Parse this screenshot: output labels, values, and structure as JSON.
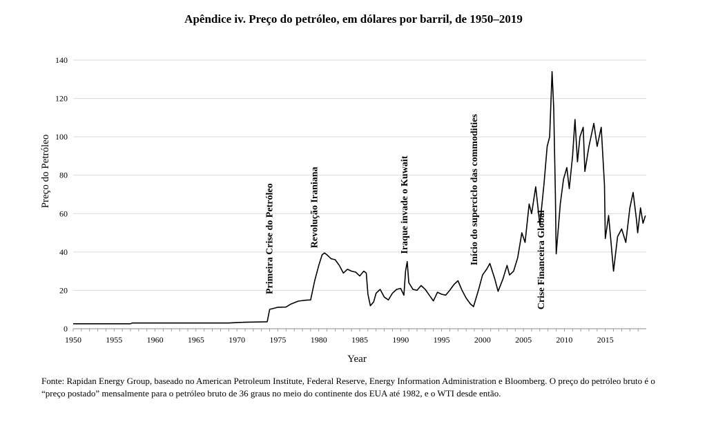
{
  "chart_data": {
    "type": "line",
    "title": "Apêndice iv. Preço do petróleo, em dólares por barril, de 1950–2019",
    "xlabel": "Year",
    "ylabel": "Preço do Petróleo",
    "xlim": [
      1950,
      2020
    ],
    "ylim": [
      0,
      140
    ],
    "x_ticks": [
      "1950",
      "1955",
      "1960",
      "1965",
      "1970",
      "1975",
      "1980",
      "1985",
      "1990",
      "1995",
      "2000",
      "2005",
      "2010",
      "2015"
    ],
    "y_ticks": [
      "0",
      "20",
      "40",
      "60",
      "80",
      "100",
      "120",
      "140"
    ],
    "grid": "horizontal",
    "series": [
      {
        "color": "#000000",
        "points": [
          [
            1950.0,
            2.6
          ],
          [
            1957.0,
            2.6
          ],
          [
            1957.2,
            3.0
          ],
          [
            1969.0,
            3.0
          ],
          [
            1970.0,
            3.2
          ],
          [
            1971.0,
            3.4
          ],
          [
            1973.7,
            3.6
          ],
          [
            1974.0,
            10.1
          ],
          [
            1974.5,
            10.6
          ],
          [
            1975.0,
            11.2
          ],
          [
            1976.0,
            11.3
          ],
          [
            1976.6,
            12.9
          ],
          [
            1977.5,
            14.4
          ],
          [
            1978.5,
            14.9
          ],
          [
            1979.0,
            15.0
          ],
          [
            1979.5,
            25.0
          ],
          [
            1980.0,
            33.0
          ],
          [
            1980.4,
            38.5
          ],
          [
            1980.7,
            39.5
          ],
          [
            1981.0,
            38.5
          ],
          [
            1981.5,
            36.5
          ],
          [
            1982.0,
            36.0
          ],
          [
            1982.5,
            33.0
          ],
          [
            1983.0,
            29.0
          ],
          [
            1983.5,
            31.0
          ],
          [
            1984.0,
            30.0
          ],
          [
            1984.5,
            29.5
          ],
          [
            1985.0,
            27.5
          ],
          [
            1985.5,
            30.0
          ],
          [
            1985.8,
            29.0
          ],
          [
            1986.0,
            18.0
          ],
          [
            1986.3,
            12.0
          ],
          [
            1986.7,
            14.0
          ],
          [
            1987.0,
            18.5
          ],
          [
            1987.5,
            20.5
          ],
          [
            1988.0,
            16.5
          ],
          [
            1988.5,
            15.0
          ],
          [
            1989.0,
            18.5
          ],
          [
            1989.5,
            20.5
          ],
          [
            1990.0,
            21.0
          ],
          [
            1990.4,
            17.5
          ],
          [
            1990.6,
            30.0
          ],
          [
            1990.8,
            35.0
          ],
          [
            1991.0,
            24.0
          ],
          [
            1991.5,
            20.5
          ],
          [
            1992.0,
            20.0
          ],
          [
            1992.5,
            22.5
          ],
          [
            1993.0,
            20.5
          ],
          [
            1993.5,
            17.5
          ],
          [
            1994.0,
            14.5
          ],
          [
            1994.5,
            19.0
          ],
          [
            1995.0,
            18.0
          ],
          [
            1995.5,
            17.5
          ],
          [
            1996.0,
            20.0
          ],
          [
            1996.5,
            23.0
          ],
          [
            1997.0,
            25.0
          ],
          [
            1997.5,
            20.0
          ],
          [
            1998.0,
            16.0
          ],
          [
            1998.5,
            13.0
          ],
          [
            1998.9,
            11.5
          ],
          [
            1999.5,
            20.0
          ],
          [
            2000.0,
            28.0
          ],
          [
            2000.5,
            31.0
          ],
          [
            2000.9,
            34.0
          ],
          [
            2001.5,
            26.0
          ],
          [
            2001.9,
            19.5
          ],
          [
            2002.5,
            26.0
          ],
          [
            2003.0,
            33.0
          ],
          [
            2003.3,
            28.0
          ],
          [
            2003.8,
            30.0
          ],
          [
            2004.3,
            37.0
          ],
          [
            2004.8,
            50.0
          ],
          [
            2005.2,
            45.0
          ],
          [
            2005.7,
            65.0
          ],
          [
            2006.0,
            60.0
          ],
          [
            2006.5,
            74.0
          ],
          [
            2007.0,
            54.0
          ],
          [
            2007.5,
            75.0
          ],
          [
            2007.9,
            95.0
          ],
          [
            2008.2,
            100.0
          ],
          [
            2008.5,
            134.0
          ],
          [
            2008.7,
            115.0
          ],
          [
            2008.9,
            70.0
          ],
          [
            2009.0,
            39.0
          ],
          [
            2009.5,
            65.0
          ],
          [
            2009.9,
            78.0
          ],
          [
            2010.3,
            84.0
          ],
          [
            2010.6,
            73.0
          ],
          [
            2011.0,
            90.0
          ],
          [
            2011.3,
            109.0
          ],
          [
            2011.6,
            87.0
          ],
          [
            2011.9,
            100.0
          ],
          [
            2012.3,
            105.0
          ],
          [
            2012.5,
            82.0
          ],
          [
            2013.0,
            95.0
          ],
          [
            2013.6,
            107.0
          ],
          [
            2014.0,
            95.0
          ],
          [
            2014.5,
            105.0
          ],
          [
            2014.9,
            75.0
          ],
          [
            2015.0,
            47.0
          ],
          [
            2015.4,
            59.0
          ],
          [
            2015.7,
            45.0
          ],
          [
            2016.0,
            30.0
          ],
          [
            2016.5,
            48.0
          ],
          [
            2017.0,
            52.0
          ],
          [
            2017.5,
            45.0
          ],
          [
            2018.0,
            63.0
          ],
          [
            2018.4,
            71.0
          ],
          [
            2018.8,
            57.0
          ],
          [
            2018.95,
            50.0
          ],
          [
            2019.3,
            63.0
          ],
          [
            2019.6,
            55.0
          ],
          [
            2019.9,
            59.0
          ]
        ]
      }
    ],
    "annotations": [
      {
        "text": "Primeira Crise do Petróleo",
        "x": 1973.9,
        "y": 18
      },
      {
        "text": "Revolução Iraniana",
        "x": 1979.4,
        "y": 42
      },
      {
        "text": "Iraque invade o Kuwait",
        "x": 1990.4,
        "y": 39
      },
      {
        "text": "Início do superciclo das commodities",
        "x": 1998.9,
        "y": 33
      },
      {
        "text": "Crise Financeira Global",
        "x": 2007.1,
        "y": 10
      }
    ]
  },
  "source": "Fonte: Rapidan Energy Group, baseado no American Petroleum Institute, Federal Reserve, Energy Information Administration e Bloomberg. O preço do petróleo bruto é o “preço postado” mensalmente para o petróleo bruto de 36 graus no meio do continente dos EUA até 1982, e o WTI desde então."
}
